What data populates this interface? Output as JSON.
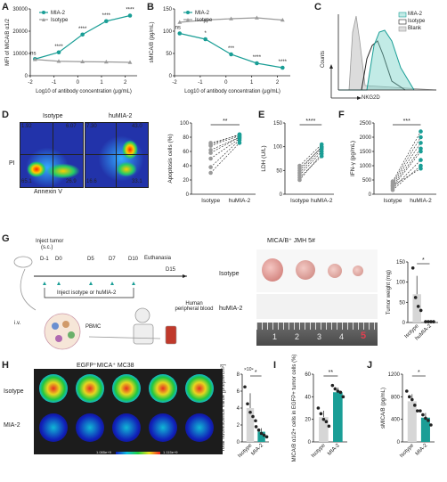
{
  "panels": {
    "A": {
      "letter": "A"
    },
    "B": {
      "letter": "B"
    },
    "C": {
      "letter": "C"
    },
    "D": {
      "letter": "D"
    },
    "E": {
      "letter": "E"
    },
    "F": {
      "letter": "F"
    },
    "G": {
      "letter": "G"
    },
    "H": {
      "letter": "H"
    },
    "I": {
      "letter": "I"
    },
    "J": {
      "letter": "J"
    }
  },
  "colors": {
    "teal": "#1a9e96",
    "gray": "#9a9a9a",
    "dark": "#222222"
  },
  "chart_data": [
    {
      "id": "A",
      "type": "line",
      "xlabel": "Log10 of antibody concentration (μg/mL)",
      "ylabel": "MFI of MICA/B α1/2",
      "xlim": [
        -2,
        2.5
      ],
      "ylim": [
        0,
        30000
      ],
      "xticks": [
        "-2",
        "-1",
        "0",
        "1",
        "2"
      ],
      "yticks": [
        "0",
        "10000",
        "20000",
        "30000"
      ],
      "series": [
        {
          "name": "MIA-2",
          "x": [
            -1.8,
            -0.8,
            0.2,
            1.2,
            2.2
          ],
          "y": [
            7500,
            10500,
            18500,
            24500,
            27000
          ]
        },
        {
          "name": "Isotype",
          "x": [
            -1.8,
            -0.8,
            0.2,
            1.2,
            2.2
          ],
          "y": [
            7300,
            6500,
            6300,
            6200,
            6000
          ]
        }
      ],
      "annotations": [
        "ns",
        "****",
        "****",
        "****",
        "****"
      ]
    },
    {
      "id": "B",
      "type": "line",
      "xlabel": "Log10 of antibody concentration (μg/mL)",
      "ylabel": "sMICA/B (pg/mL)",
      "xlim": [
        -2,
        2.5
      ],
      "ylim": [
        0,
        150
      ],
      "xticks": [
        "-2",
        "-1",
        "0",
        "1",
        "2"
      ],
      "yticks": [
        "0",
        "50",
        "100",
        "150"
      ],
      "series": [
        {
          "name": "MIA-2",
          "x": [
            -1.8,
            -0.8,
            0.2,
            1.2,
            2.2
          ],
          "y": [
            95,
            82,
            48,
            28,
            18
          ]
        },
        {
          "name": "Isotype",
          "x": [
            -1.8,
            -0.8,
            0.2,
            1.2,
            2.2
          ],
          "y": [
            120,
            125,
            128,
            130,
            125
          ]
        }
      ],
      "annotations": [
        "ns",
        "*",
        "***",
        "****",
        "****"
      ]
    },
    {
      "id": "D",
      "type": "scatter",
      "ylabel": "Apoptosis cells (%)",
      "categories": [
        "Isotype",
        "huMIA-2"
      ],
      "ylim": [
        0,
        100
      ],
      "yticks": [
        "0",
        "20",
        "40",
        "60",
        "80",
        "100"
      ],
      "pairs": [
        [
          30,
          72
        ],
        [
          38,
          76
        ],
        [
          50,
          78
        ],
        [
          58,
          80
        ],
        [
          62,
          80
        ],
        [
          68,
          82
        ],
        [
          70,
          84
        ],
        [
          72,
          83
        ]
      ],
      "sig": "**"
    },
    {
      "id": "E",
      "type": "scatter",
      "ylabel": "LDH (U/L)",
      "categories": [
        "Isotype",
        "huMIA-2"
      ],
      "ylim": [
        0,
        150
      ],
      "yticks": [
        "0",
        "50",
        "100",
        "150"
      ],
      "pairs": [
        [
          30,
          85
        ],
        [
          35,
          80
        ],
        [
          40,
          90
        ],
        [
          45,
          95
        ],
        [
          50,
          100
        ],
        [
          55,
          98
        ],
        [
          60,
          105
        ]
      ],
      "sig": "****"
    },
    {
      "id": "F",
      "type": "scatter",
      "ylabel": "IFN-γ (pg/mL)",
      "categories": [
        "Isotype",
        "huMIA-2"
      ],
      "ylim": [
        0,
        2500
      ],
      "yticks": [
        "0",
        "500",
        "1000",
        "1500",
        "2000",
        "2500"
      ],
      "pairs": [
        [
          150,
          1000
        ],
        [
          200,
          1200
        ],
        [
          250,
          1500
        ],
        [
          300,
          1600
        ],
        [
          350,
          1800
        ],
        [
          400,
          2000
        ],
        [
          450,
          2200
        ],
        [
          300,
          900
        ]
      ],
      "sig": "***"
    },
    {
      "id": "G",
      "type": "bar",
      "ylabel": "Tumor weight (mg)",
      "categories": [
        "Isotype",
        "huMIA-2"
      ],
      "values": [
        70,
        2
      ],
      "ylim": [
        0,
        150
      ],
      "yticks": [
        "0",
        "50",
        "100",
        "150"
      ],
      "points": [
        [
          135,
          62,
          40,
          30
        ],
        [
          2,
          2,
          2,
          2
        ]
      ],
      "sig": "*"
    },
    {
      "id": "H",
      "type": "bar",
      "ylabel": "Total fluorescence value [p/s/μw/cm²]",
      "yscale_label": "×10⁹",
      "categories": [
        "Isotype",
        "MIA-2"
      ],
      "values": [
        4.0,
        1.2
      ],
      "ylim": [
        0,
        8
      ],
      "yticks": [
        "0",
        "2",
        "4",
        "6",
        "8"
      ],
      "points": [
        [
          6.5,
          4.5,
          3.5,
          3.0,
          2.5
        ],
        [
          1.8,
          1.4,
          1.0,
          0.8,
          0.6
        ]
      ],
      "sig": "*"
    },
    {
      "id": "I",
      "type": "bar",
      "ylabel": "MICA/B α1/2+ cells in EGFP+ tumor cells (%)",
      "categories": [
        "Isotype",
        "MIA-2"
      ],
      "values": [
        22,
        44
      ],
      "ylim": [
        0,
        60
      ],
      "yticks": [
        "0",
        "20",
        "40",
        "60"
      ],
      "points": [
        [
          30,
          25,
          20,
          18,
          14
        ],
        [
          50,
          47,
          45,
          44,
          40
        ]
      ],
      "sig": "**"
    },
    {
      "id": "J",
      "type": "bar",
      "ylabel": "sMICA/B (pg/mL)",
      "categories": [
        "Isotype",
        "MIA-2"
      ],
      "values": [
        720,
        430
      ],
      "ylim": [
        0,
        1200
      ],
      "yticks": [
        "0",
        "400",
        "800",
        "1200"
      ],
      "points": [
        [
          900,
          800,
          750,
          650,
          550
        ],
        [
          550,
          480,
          420,
          380,
          300
        ]
      ],
      "sig": "*"
    }
  ],
  "legend": {
    "mia2": "MIA-2",
    "isotype": "Isotype",
    "blank": "Blank"
  },
  "C": {
    "xlabel": "NKG2D",
    "ylabel": "Counts"
  },
  "D_flow": {
    "left_title": "Isotype",
    "right_title": "huMIA-2",
    "left_q": [
      "1.92",
      "6.07",
      "65.1",
      "26.9"
    ],
    "right_q": [
      "7.30",
      "43.0",
      "16.6",
      "33.1"
    ],
    "xlabel": "Annexin V",
    "ylabel": "PI"
  },
  "G_schema": {
    "inject_tumor": "Inject tumor",
    "sc": "(s.c.)",
    "days": [
      "D-1",
      "D0",
      "D5",
      "D7",
      "D10",
      "D15"
    ],
    "euthanasia": "Euthanasia",
    "inject_iso": "Inject isotype or huMIA-2",
    "iv": "i.v.",
    "pbmc": "PBMC",
    "human_blood": "Human\nperipheral blood",
    "photo_title": "MICA/B⁺ JMH 5#",
    "row1": "Isotype",
    "row2": "huMIA-2",
    "ruler": [
      "1",
      "2",
      "3",
      "4",
      "5"
    ]
  },
  "H_imaging": {
    "title": "EGFP⁺MICA⁺ MC38",
    "row1": "Isotype",
    "row2": "MIA-2",
    "scale_min": "1.085e+9",
    "scale_max": "1.115e+9"
  }
}
